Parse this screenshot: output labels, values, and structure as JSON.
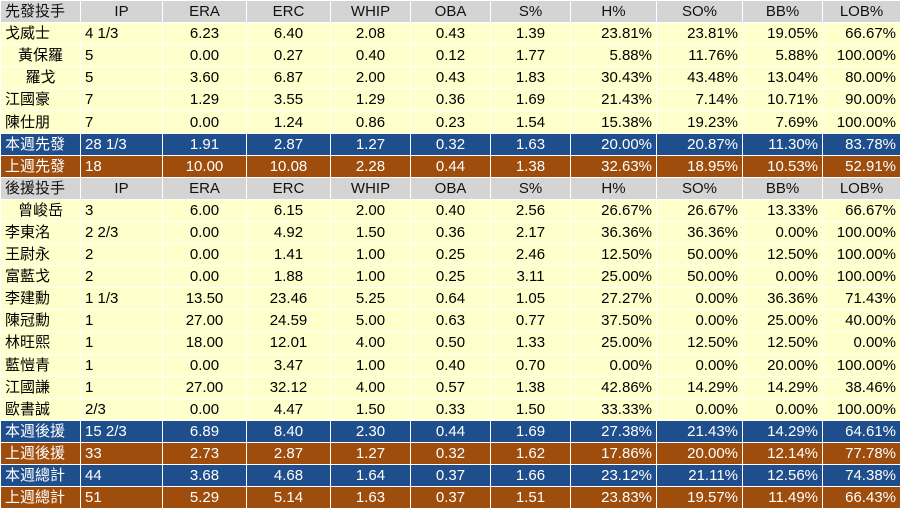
{
  "headers": {
    "starters": [
      "先發投手",
      "IP",
      "ERA",
      "ERC",
      "WHIP",
      "OBA",
      "S%",
      "H%",
      "SO%",
      "BB%",
      "LOB%"
    ],
    "relievers": [
      "後援投手",
      "IP",
      "ERA",
      "ERC",
      "WHIP",
      "OBA",
      "S%",
      "H%",
      "SO%",
      "BB%",
      "LOB%"
    ]
  },
  "starters": [
    [
      "戈威士",
      "4 1/3",
      "6.23",
      "6.40",
      "2.08",
      "0.43",
      "1.39",
      "23.81%",
      "23.81%",
      "19.05%",
      "66.67%"
    ],
    [
      "黃保羅",
      "5",
      "0.00",
      "0.27",
      "0.40",
      "0.12",
      "1.77",
      "5.88%",
      "11.76%",
      "5.88%",
      "100.00%"
    ],
    [
      "羅戈",
      "5",
      "3.60",
      "6.87",
      "2.00",
      "0.43",
      "1.83",
      "30.43%",
      "43.48%",
      "13.04%",
      "80.00%"
    ],
    [
      "江國豪",
      "7",
      "1.29",
      "3.55",
      "1.29",
      "0.36",
      "1.69",
      "21.43%",
      "7.14%",
      "10.71%",
      "90.00%"
    ],
    [
      "陳仕朋",
      "7",
      "0.00",
      "1.24",
      "0.86",
      "0.23",
      "1.54",
      "15.38%",
      "19.23%",
      "7.69%",
      "100.00%"
    ]
  ],
  "starter_totals": {
    "this_week": [
      "本週先發",
      "28 1/3",
      "1.91",
      "2.87",
      "1.27",
      "0.32",
      "1.63",
      "20.00%",
      "20.87%",
      "11.30%",
      "83.78%"
    ],
    "last_week": [
      "上週先發",
      "18",
      "10.00",
      "10.08",
      "2.28",
      "0.44",
      "1.38",
      "32.63%",
      "18.95%",
      "10.53%",
      "52.91%"
    ]
  },
  "relievers": [
    [
      "曾峻岳",
      "3",
      "6.00",
      "6.15",
      "2.00",
      "0.40",
      "2.56",
      "26.67%",
      "26.67%",
      "13.33%",
      "66.67%"
    ],
    [
      "李東洺",
      "2 2/3",
      "0.00",
      "4.92",
      "1.50",
      "0.36",
      "2.17",
      "36.36%",
      "36.36%",
      "0.00%",
      "100.00%"
    ],
    [
      "王尉永",
      "2",
      "0.00",
      "1.41",
      "1.00",
      "0.25",
      "2.46",
      "12.50%",
      "50.00%",
      "12.50%",
      "100.00%"
    ],
    [
      "富藍戈",
      "2",
      "0.00",
      "1.88",
      "1.00",
      "0.25",
      "3.11",
      "25.00%",
      "50.00%",
      "0.00%",
      "100.00%"
    ],
    [
      "李建勳",
      "1 1/3",
      "13.50",
      "23.46",
      "5.25",
      "0.64",
      "1.05",
      "27.27%",
      "0.00%",
      "36.36%",
      "71.43%"
    ],
    [
      "陳冠勳",
      "1",
      "27.00",
      "24.59",
      "5.00",
      "0.63",
      "0.77",
      "37.50%",
      "0.00%",
      "25.00%",
      "40.00%"
    ],
    [
      "林旺熙",
      "1",
      "18.00",
      "12.01",
      "4.00",
      "0.50",
      "1.33",
      "25.00%",
      "12.50%",
      "12.50%",
      "0.00%"
    ],
    [
      "藍愷青",
      "1",
      "0.00",
      "3.47",
      "1.00",
      "0.40",
      "0.70",
      "0.00%",
      "0.00%",
      "20.00%",
      "100.00%"
    ],
    [
      "江國謙",
      "1",
      "27.00",
      "32.12",
      "4.00",
      "0.57",
      "1.38",
      "42.86%",
      "14.29%",
      "14.29%",
      "38.46%"
    ],
    [
      "歐書誠",
      "2/3",
      "0.00",
      "4.47",
      "1.50",
      "0.33",
      "1.50",
      "33.33%",
      "0.00%",
      "0.00%",
      "100.00%"
    ]
  ],
  "reliever_totals": {
    "this_week": [
      "本週後援",
      "15 2/3",
      "6.89",
      "8.40",
      "2.30",
      "0.44",
      "1.69",
      "27.38%",
      "21.43%",
      "14.29%",
      "64.61%"
    ],
    "last_week": [
      "上週後援",
      "33",
      "2.73",
      "2.87",
      "1.27",
      "0.32",
      "1.62",
      "17.86%",
      "20.00%",
      "12.14%",
      "77.78%"
    ]
  },
  "overall_totals": {
    "this_week": [
      "本週總計",
      "44",
      "3.68",
      "4.68",
      "1.64",
      "0.37",
      "1.66",
      "23.12%",
      "21.11%",
      "12.56%",
      "74.38%"
    ],
    "last_week": [
      "上週總計",
      "51",
      "5.29",
      "5.14",
      "1.63",
      "0.37",
      "1.51",
      "23.83%",
      "19.57%",
      "11.49%",
      "66.43%"
    ]
  },
  "colors": {
    "header_bg": "#d4d4d4",
    "player_row_bg": "#ffffcc",
    "this_week_bg": "#1f4e8c",
    "last_week_bg": "#9e4d0d"
  }
}
